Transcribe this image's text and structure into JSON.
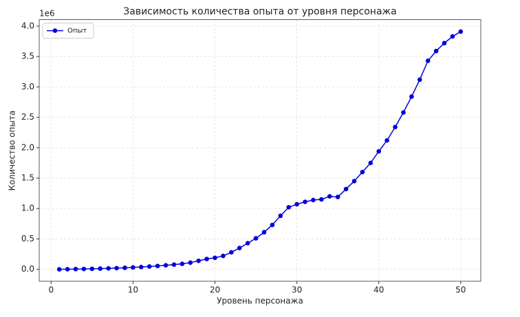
{
  "chart_data": {
    "type": "line",
    "title": "Зависимость количества опыта от уровня персонажа",
    "x_label": "Уровень персонажа",
    "y_label": "Количество опыта",
    "y_offset_label": "1e6",
    "x": [
      1,
      2,
      3,
      4,
      5,
      6,
      7,
      8,
      9,
      10,
      11,
      12,
      13,
      14,
      15,
      16,
      17,
      18,
      19,
      20,
      21,
      22,
      23,
      24,
      25,
      26,
      27,
      28,
      29,
      30,
      31,
      32,
      33,
      34,
      35,
      36,
      37,
      38,
      39,
      40,
      41,
      42,
      43,
      44,
      45,
      46,
      47,
      48,
      49,
      50
    ],
    "series": [
      {
        "name": "Опыт",
        "color": "#0000dd",
        "values": [
          0.0,
          0.002,
          0.004,
          0.006,
          0.009,
          0.012,
          0.016,
          0.02,
          0.025,
          0.031,
          0.038,
          0.046,
          0.055,
          0.066,
          0.078,
          0.09,
          0.11,
          0.14,
          0.17,
          0.19,
          0.22,
          0.28,
          0.35,
          0.43,
          0.51,
          0.61,
          0.73,
          0.88,
          1.02,
          1.07,
          1.11,
          1.14,
          1.15,
          1.2,
          1.19,
          1.32,
          1.45,
          1.6,
          1.75,
          1.94,
          2.12,
          2.34,
          2.58,
          2.84,
          3.12,
          3.43,
          3.59,
          3.72,
          3.83,
          3.91
        ]
      }
    ],
    "xlim": [
      -1.45,
      52.45
    ],
    "xticks": [
      0,
      10,
      20,
      30,
      40,
      50
    ],
    "ylim": [
      -0.196,
      4.106
    ],
    "yticks": [
      {
        "value": 0,
        "label": "0.0"
      },
      0.5,
      {
        "value": 1,
        "label": "1.0"
      },
      1.5,
      {
        "value": 2,
        "label": "2.0"
      },
      2.5,
      {
        "value": 3,
        "label": "3.0"
      },
      3.5,
      {
        "value": 4,
        "label": "4.0"
      }
    ],
    "grid": true,
    "legend": "upper left"
  }
}
